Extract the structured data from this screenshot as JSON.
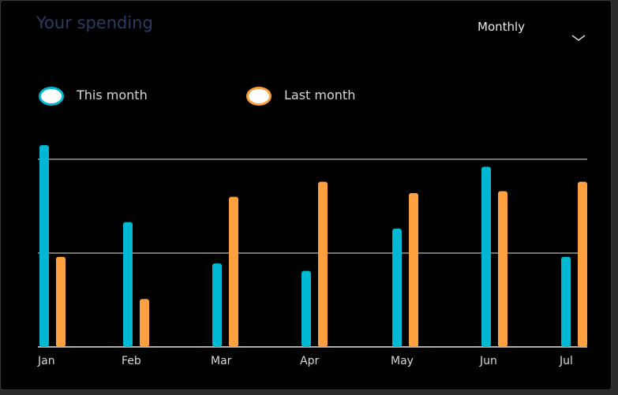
{
  "header": {
    "title": "Your spending",
    "period_selector": "Monthly",
    "period_icon": "chevron-down-icon"
  },
  "legend": [
    {
      "label": "This month",
      "color": "#00b8d4"
    },
    {
      "label": "Last month",
      "color": "#ffa040"
    }
  ],
  "chart_data": {
    "type": "bar",
    "categories": [
      "Jan",
      "Feb",
      "Mar",
      "Apr",
      "May",
      "Jun",
      "Jul"
    ],
    "series": [
      {
        "name": "This month",
        "color": "#00b8d4",
        "values": [
          2.15,
          1.33,
          0.89,
          0.81,
          1.26,
          1.92,
          0.96
        ]
      },
      {
        "name": "Last month",
        "color": "#ffa040",
        "values": [
          0.96,
          0.51,
          1.6,
          1.76,
          1.64,
          1.66,
          1.76
        ]
      }
    ],
    "ylim": [
      0,
      2
    ],
    "gridlines": [
      0,
      1,
      2
    ],
    "grid": true,
    "legend_position": "top-left"
  }
}
